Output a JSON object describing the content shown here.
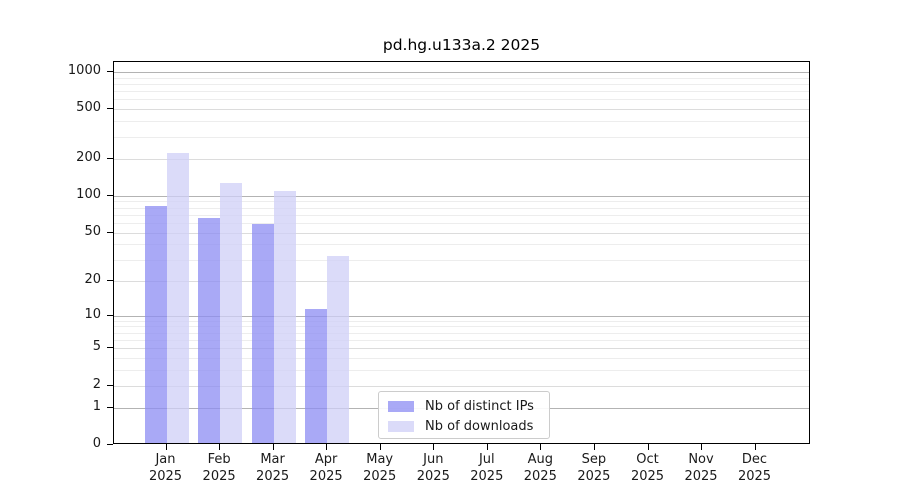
{
  "chart_data": {
    "type": "bar",
    "title": "pd.hg.u133a.2 2025",
    "categories": [
      "Jan",
      "Feb",
      "Mar",
      "Apr",
      "May",
      "Jun",
      "Jul",
      "Aug",
      "Sep",
      "Oct",
      "Nov",
      "Dec"
    ],
    "xtick_year": "2025",
    "series": [
      {
        "name": "Nb of distinct IPs",
        "color": "#8c8cf3",
        "opacity": 0.75,
        "values": [
          80,
          64,
          57,
          11,
          0,
          0,
          0,
          0,
          0,
          0,
          0,
          0
        ]
      },
      {
        "name": "Nb of downloads",
        "color": "#cfcff7",
        "opacity": 0.75,
        "values": [
          215,
          123,
          106,
          31,
          0,
          0,
          0,
          0,
          0,
          0,
          0,
          0
        ]
      }
    ],
    "xlabel": "",
    "ylabel": "",
    "yscale": "log1p",
    "yticks": [
      0,
      1,
      2,
      5,
      10,
      20,
      50,
      100,
      200,
      500,
      1000
    ],
    "ylim": [
      0,
      1200
    ],
    "grid": "horizontal",
    "legend_position": "lower center inside",
    "colors": {
      "grid_major": "#b3b3b3",
      "grid_minor": "#dcdcdc",
      "grid_faint": "#ededed",
      "axis": "#000000",
      "text": "#1a1a1a"
    }
  }
}
